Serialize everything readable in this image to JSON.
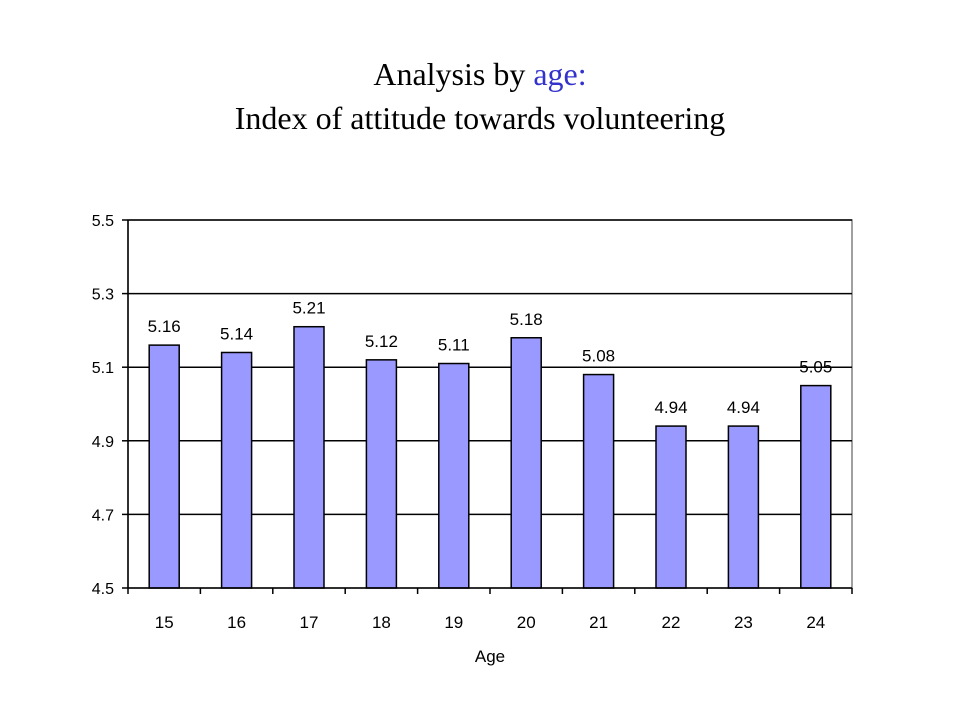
{
  "title": {
    "prefix": "Analysis  by ",
    "highlight": "age:",
    "line2": "Index  of  attitude  towards  volunteering"
  },
  "colors": {
    "bar_fill": "#9999ff",
    "bar_stroke": "#000000",
    "gridline": "#000000",
    "plot_border": "#808080",
    "title_accent": "#3333cc"
  },
  "chart_data": {
    "type": "bar",
    "categories": [
      "15",
      "16",
      "17",
      "18",
      "19",
      "20",
      "21",
      "22",
      "23",
      "24"
    ],
    "values": [
      5.16,
      5.14,
      5.21,
      5.12,
      5.11,
      5.18,
      5.08,
      4.94,
      4.94,
      5.05
    ],
    "data_labels": [
      "5.16",
      "5.14",
      "5.21",
      "5.12",
      "5.11",
      "5.18",
      "5.08",
      "4.94",
      "4.94",
      "5.05"
    ],
    "title": "Analysis  by age: Index of attitude towards volunteering",
    "xlabel": "Age",
    "ylabel": "",
    "ylim": [
      4.5,
      5.5
    ],
    "yticks": [
      4.5,
      4.7,
      4.9,
      5.1,
      5.3,
      5.5
    ],
    "ytick_labels": [
      "4.5",
      "4.7",
      "4.9",
      "5.1",
      "5.3",
      "5.5"
    ],
    "grid": "horizontal",
    "legend": "none"
  }
}
